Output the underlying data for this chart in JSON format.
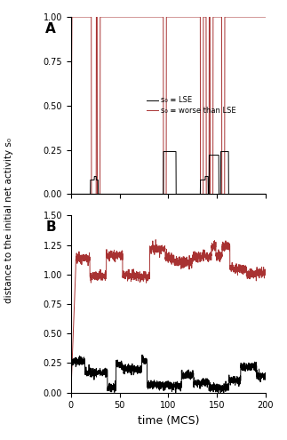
{
  "xlabel": "time (MCS)",
  "ylabel": "distance to the initial net activity s₀",
  "panel_A_label": "A",
  "panel_B_label": "B",
  "legend_black": "s₀ ≡ LSE",
  "legend_red": "s₀ ≡ worse than LSE",
  "black_color": "#000000",
  "red_color": "#a83232",
  "panel_A_ylim": [
    0,
    1.0
  ],
  "panel_A_yticks": [
    0,
    0.25,
    0.5,
    0.75,
    1
  ],
  "panel_B_ylim": [
    0,
    1.5
  ],
  "panel_B_yticks": [
    0.75,
    1.0,
    1.25,
    1.5
  ],
  "panel_B_yticks_full": [
    0,
    0.25,
    0.5,
    0.75,
    1.0,
    1.25,
    1.5
  ],
  "xlim": [
    0,
    200
  ],
  "xticks": [
    0,
    50,
    100,
    150,
    200
  ]
}
